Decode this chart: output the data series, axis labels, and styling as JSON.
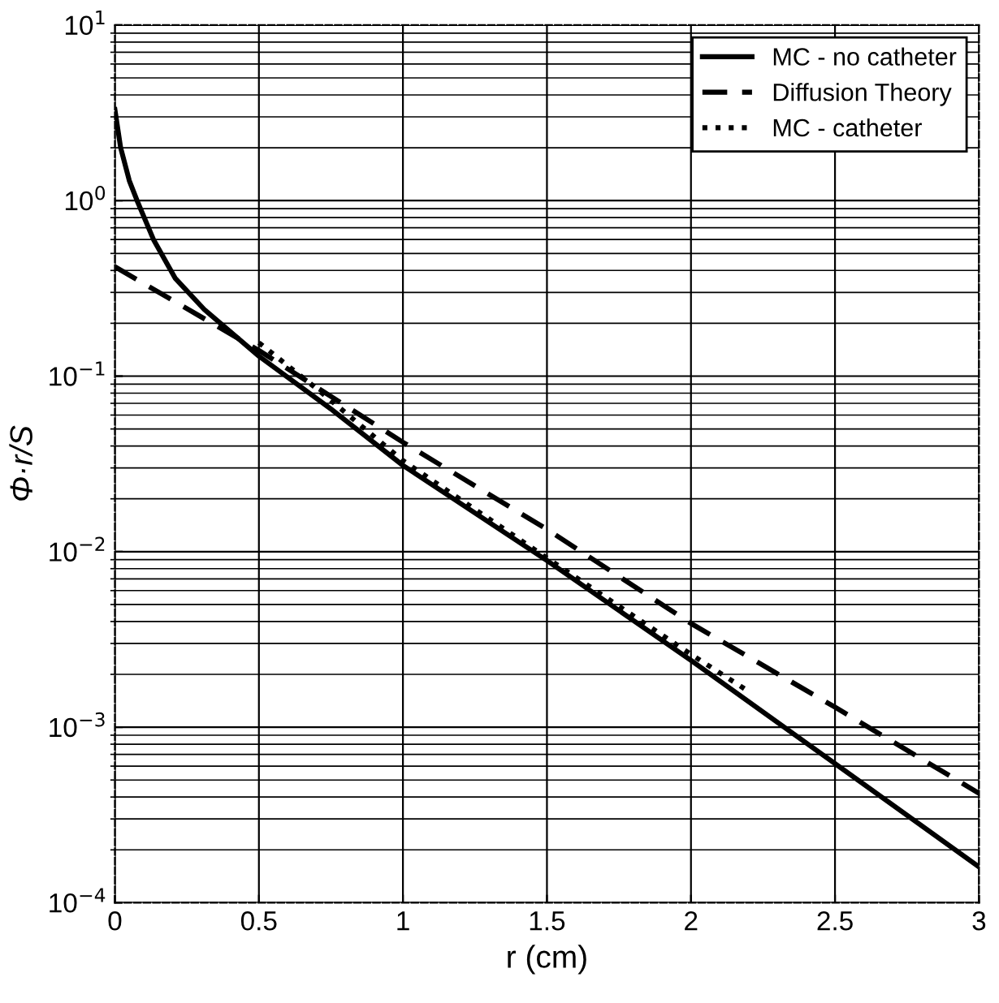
{
  "chart_data": {
    "type": "line",
    "xlabel": "r (cm)",
    "ylabel": "Φ·r/S",
    "log": "y",
    "grid": true,
    "legend": "top right",
    "xlim": [
      0,
      3
    ],
    "xticks": [
      0,
      0.5,
      1,
      1.5,
      2,
      2.5,
      3
    ],
    "ylim": [
      0.0001,
      10
    ],
    "yticks": [
      {
        "value": 0.0001,
        "label": "10$^{−4}$"
      },
      {
        "value": 0.001,
        "label": "10$^{−3}$"
      },
      {
        "value": 0.01,
        "label": "10$^{−2}$"
      },
      {
        "value": 0.1,
        "label": "10$^{−1}$"
      },
      {
        "value": 1,
        "label": "10$^{0}$"
      },
      {
        "value": 10,
        "label": "10$^{1}$"
      }
    ],
    "series": [
      {
        "name": "MC - no catheter",
        "color": "#000000",
        "line_style": "solid",
        "x": [
          0,
          0.02,
          0.05,
          0.077,
          0.134,
          0.21,
          0.31,
          0.5,
          0.75,
          1,
          1.5,
          2,
          2.5,
          3
        ],
        "values": [
          3.3,
          2.0,
          1.3,
          1.0,
          0.6,
          0.36,
          0.24,
          0.13,
          0.065,
          0.031,
          0.0089,
          0.0024,
          0.00062,
          0.00016
        ]
      },
      {
        "name": "Diffusion Theory",
        "color": "#000000",
        "line_style": "dashed",
        "x": [
          0,
          0.5,
          1,
          1.5,
          2,
          2.5,
          3
        ],
        "values": [
          0.42,
          0.14,
          0.042,
          0.0134,
          0.0039,
          0.0013,
          0.00042
        ]
      },
      {
        "name": "MC - catheter",
        "color": "#000000",
        "line_style": "dotted",
        "x": [
          0.5,
          0.7,
          1,
          1.5,
          2,
          2.2
        ],
        "values": [
          0.155,
          0.085,
          0.033,
          0.0092,
          0.0026,
          0.0016
        ]
      }
    ]
  }
}
